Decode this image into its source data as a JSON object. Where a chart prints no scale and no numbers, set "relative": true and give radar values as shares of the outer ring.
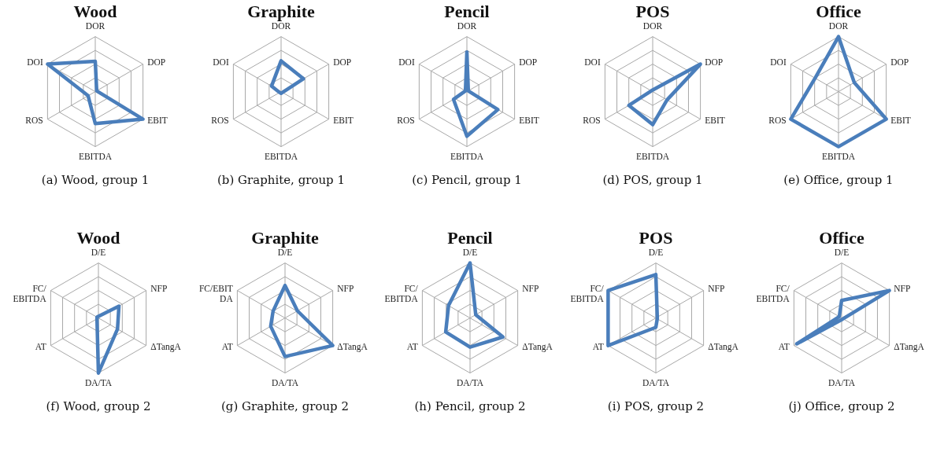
{
  "chart_data": [
    {
      "type": "radar",
      "title": "Wood",
      "relative": true,
      "grid": true,
      "categories": [
        "DOR",
        "DOP",
        "EBIT",
        "EBITDA",
        "ROS",
        "DOI"
      ],
      "series": [
        {
          "color": "#4a7ebb",
          "values": [
            0.55,
            0.03,
            1.0,
            0.58,
            0.15,
            1.0
          ]
        }
      ],
      "annotations": [
        "(a) Wood, group 1"
      ]
    },
    {
      "type": "radar",
      "title": "Graphite",
      "relative": true,
      "grid": true,
      "categories": [
        "DOR",
        "DOP",
        "EBIT",
        "EBITDA",
        "ROS",
        "DOI"
      ],
      "series": [
        {
          "color": "#4a7ebb",
          "values": [
            0.56,
            0.47,
            0.03,
            0.03,
            0.03,
            0.2
          ]
        }
      ],
      "annotations": [
        "(b) Graphite, group 1"
      ]
    },
    {
      "type": "radar",
      "title": "Pencil",
      "relative": true,
      "grid": true,
      "categories": [
        "DOR",
        "DOP",
        "EBIT",
        "EBITDA",
        "ROS",
        "DOI"
      ],
      "series": [
        {
          "color": "#4a7ebb",
          "values": [
            0.72,
            0.03,
            0.65,
            0.81,
            0.28,
            0.03
          ]
        }
      ],
      "annotations": [
        "(c) Pencil, group 1"
      ]
    },
    {
      "type": "radar",
      "title": "POS",
      "relative": true,
      "grid": true,
      "categories": [
        "DOR",
        "DOP",
        "EBIT",
        "EBITDA",
        "ROS",
        "DOI"
      ],
      "series": [
        {
          "color": "#4a7ebb",
          "values": [
            0.03,
            1.0,
            0.3,
            0.6,
            0.5,
            0.03
          ]
        }
      ],
      "annotations": [
        "(d) POS, group 1"
      ]
    },
    {
      "type": "radar",
      "title": "Office",
      "relative": true,
      "grid": true,
      "categories": [
        "DOR",
        "DOP",
        "EBIT",
        "EBITDA",
        "ROS",
        "DOI"
      ],
      "series": [
        {
          "color": "#4a7ebb",
          "values": [
            1.0,
            0.33,
            1.0,
            1.0,
            1.0,
            0.49
          ]
        }
      ],
      "annotations": [
        "(e) Office, group 1"
      ]
    },
    {
      "type": "radar",
      "title": "Wood",
      "relative": true,
      "grid": true,
      "categories": [
        "D/E",
        "NFP",
        "ΔTangA",
        "DA/TA",
        "AT",
        "FC/\nEBITDA"
      ],
      "series": [
        {
          "color": "#4a7ebb",
          "values": [
            0.03,
            0.43,
            0.4,
            1.0,
            0.03,
            0.03
          ]
        }
      ],
      "annotations": [
        "(f) Wood, group 2"
      ]
    },
    {
      "type": "radar",
      "title": "Graphite",
      "relative": true,
      "grid": true,
      "categories": [
        "D/E",
        "NFP",
        "ΔTangA",
        "DA/TA",
        "AT",
        "FC/EBIT\nDA"
      ],
      "series": [
        {
          "color": "#4a7ebb",
          "values": [
            0.59,
            0.26,
            1.0,
            0.7,
            0.3,
            0.25
          ]
        }
      ],
      "annotations": [
        "(g) Graphite, group 2"
      ]
    },
    {
      "type": "radar",
      "title": "Pencil",
      "relative": true,
      "grid": true,
      "categories": [
        "D/E",
        "NFP",
        "ΔTangA",
        "DA/TA",
        "AT",
        "FC/\nEBITDA"
      ],
      "series": [
        {
          "color": "#4a7ebb",
          "values": [
            1.0,
            0.12,
            0.69,
            0.53,
            0.51,
            0.45
          ]
        }
      ],
      "annotations": [
        "(h) Pencil, group 2"
      ]
    },
    {
      "type": "radar",
      "title": "POS",
      "relative": true,
      "grid": true,
      "categories": [
        "D/E",
        "NFP",
        "ΔTangA",
        "DA/TA",
        "AT",
        "FC/\nEBITDA"
      ],
      "series": [
        {
          "color": "#4a7ebb",
          "values": [
            0.79,
            0.03,
            0.03,
            0.17,
            1.0,
            1.0
          ]
        }
      ],
      "annotations": [
        "(i) POS, group 2"
      ]
    },
    {
      "type": "radar",
      "title": "Office",
      "relative": true,
      "grid": true,
      "categories": [
        "D/E",
        "NFP",
        "ΔTangA",
        "DA/TA",
        "AT",
        "FC/\nEBITDA"
      ],
      "series": [
        {
          "color": "#4a7ebb",
          "values": [
            0.32,
            1.0,
            0.03,
            0.03,
            0.94,
            0.05
          ]
        }
      ],
      "annotations": [
        "(j) Office, group 2"
      ]
    }
  ]
}
